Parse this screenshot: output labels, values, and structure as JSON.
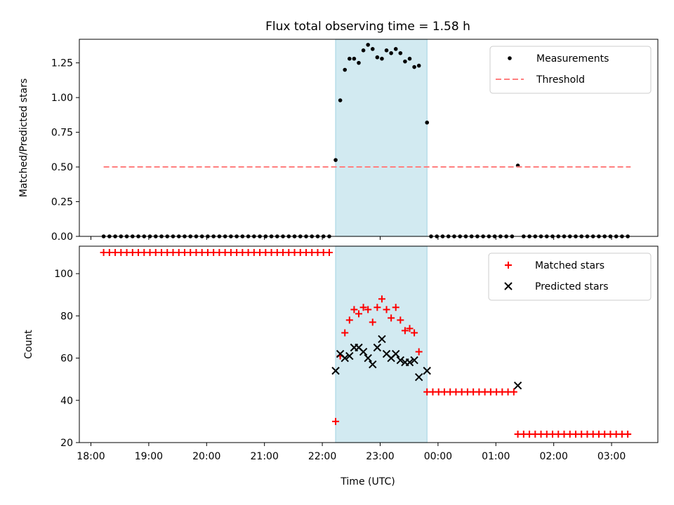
{
  "figure": {
    "title": "Flux total observing time = 1.58 h",
    "xlabel": "Time (UTC)",
    "shaded_interval_h": [
      22.23,
      23.81
    ],
    "shade_color": "#add8e6",
    "xlim_h": [
      17.8,
      27.8
    ],
    "x_ticks": [
      {
        "value": 18,
        "label": "18:00"
      },
      {
        "value": 19,
        "label": "19:00"
      },
      {
        "value": 20,
        "label": "20:00"
      },
      {
        "value": 21,
        "label": "21:00"
      },
      {
        "value": 22,
        "label": "22:00"
      },
      {
        "value": 23,
        "label": "23:00"
      },
      {
        "value": 24,
        "label": "00:00"
      },
      {
        "value": 25,
        "label": "01:00"
      },
      {
        "value": 26,
        "label": "02:00"
      },
      {
        "value": 27,
        "label": "03:00"
      }
    ]
  },
  "chart_data": [
    {
      "type": "scatter",
      "title": "Flux total observing time = 1.58 h",
      "xlabel": "",
      "ylabel": "Matched/Predicted stars",
      "ylim": [
        0,
        1.42
      ],
      "y_ticks": [
        "0.00",
        "0.25",
        "0.50",
        "0.75",
        "1.00",
        "1.25"
      ],
      "legend": {
        "position": "top-right",
        "entries": [
          "Measurements",
          "Threshold"
        ]
      },
      "series": [
        {
          "name": "Measurements",
          "marker": "dot",
          "color": "#000000",
          "zero_runs": [
            {
              "start": 18.22,
              "end": 22.12,
              "step": 0.1
            },
            {
              "start": 23.88,
              "end": 25.28,
              "step": 0.1
            },
            {
              "start": 25.48,
              "end": 27.33,
              "step": 0.1
            }
          ],
          "points": [
            [
              22.23,
              0.55
            ],
            [
              22.31,
              0.98
            ],
            [
              22.39,
              1.2
            ],
            [
              22.47,
              1.28
            ],
            [
              22.55,
              1.28
            ],
            [
              22.63,
              1.25
            ],
            [
              22.71,
              1.34
            ],
            [
              22.79,
              1.38
            ],
            [
              22.87,
              1.35
            ],
            [
              22.95,
              1.29
            ],
            [
              23.03,
              1.28
            ],
            [
              23.11,
              1.34
            ],
            [
              23.19,
              1.32
            ],
            [
              23.27,
              1.35
            ],
            [
              23.35,
              1.32
            ],
            [
              23.43,
              1.26
            ],
            [
              23.51,
              1.28
            ],
            [
              23.59,
              1.22
            ],
            [
              23.67,
              1.23
            ],
            [
              23.81,
              0.82
            ],
            [
              25.38,
              0.51
            ]
          ]
        },
        {
          "name": "Threshold",
          "style": "dashed",
          "color": "#ff7f7f",
          "value": 0.5,
          "x_range": [
            18.22,
            27.33
          ]
        }
      ]
    },
    {
      "type": "scatter",
      "xlabel": "Time (UTC)",
      "ylabel": "Count",
      "ylim": [
        20,
        113
      ],
      "y_ticks": [
        "20",
        "40",
        "60",
        "80",
        "100"
      ],
      "legend": {
        "position": "top-right",
        "entries": [
          "Matched stars",
          "Predicted stars"
        ]
      },
      "series": [
        {
          "name": "Matched stars",
          "marker": "plus",
          "color": "#ff0000",
          "runs": [
            {
              "start": 18.22,
              "end": 22.12,
              "step": 0.1,
              "value": 110
            },
            {
              "start": 23.81,
              "end": 25.31,
              "step": 0.1,
              "value": 44
            },
            {
              "start": 25.38,
              "end": 27.33,
              "step": 0.1,
              "value": 24
            }
          ],
          "points": [
            [
              22.23,
              30
            ],
            [
              22.31,
              61
            ],
            [
              22.39,
              72
            ],
            [
              22.47,
              78
            ],
            [
              22.55,
              83
            ],
            [
              22.63,
              81
            ],
            [
              22.71,
              84
            ],
            [
              22.79,
              83
            ],
            [
              22.87,
              77
            ],
            [
              22.95,
              84
            ],
            [
              23.03,
              88
            ],
            [
              23.11,
              83
            ],
            [
              23.19,
              79
            ],
            [
              23.27,
              84
            ],
            [
              23.35,
              78
            ],
            [
              23.43,
              73
            ],
            [
              23.51,
              74
            ],
            [
              23.59,
              72
            ],
            [
              23.67,
              63
            ]
          ]
        },
        {
          "name": "Predicted stars",
          "marker": "x",
          "color": "#000000",
          "points": [
            [
              22.23,
              54
            ],
            [
              22.31,
              62
            ],
            [
              22.39,
              60
            ],
            [
              22.47,
              61
            ],
            [
              22.55,
              65
            ],
            [
              22.63,
              65
            ],
            [
              22.71,
              63
            ],
            [
              22.79,
              60
            ],
            [
              22.87,
              57
            ],
            [
              22.95,
              65
            ],
            [
              23.03,
              69
            ],
            [
              23.11,
              62
            ],
            [
              23.19,
              60
            ],
            [
              23.27,
              62
            ],
            [
              23.35,
              59
            ],
            [
              23.43,
              58
            ],
            [
              23.51,
              58
            ],
            [
              23.59,
              59
            ],
            [
              23.67,
              51
            ],
            [
              23.81,
              54
            ],
            [
              25.38,
              47
            ]
          ]
        }
      ]
    }
  ]
}
